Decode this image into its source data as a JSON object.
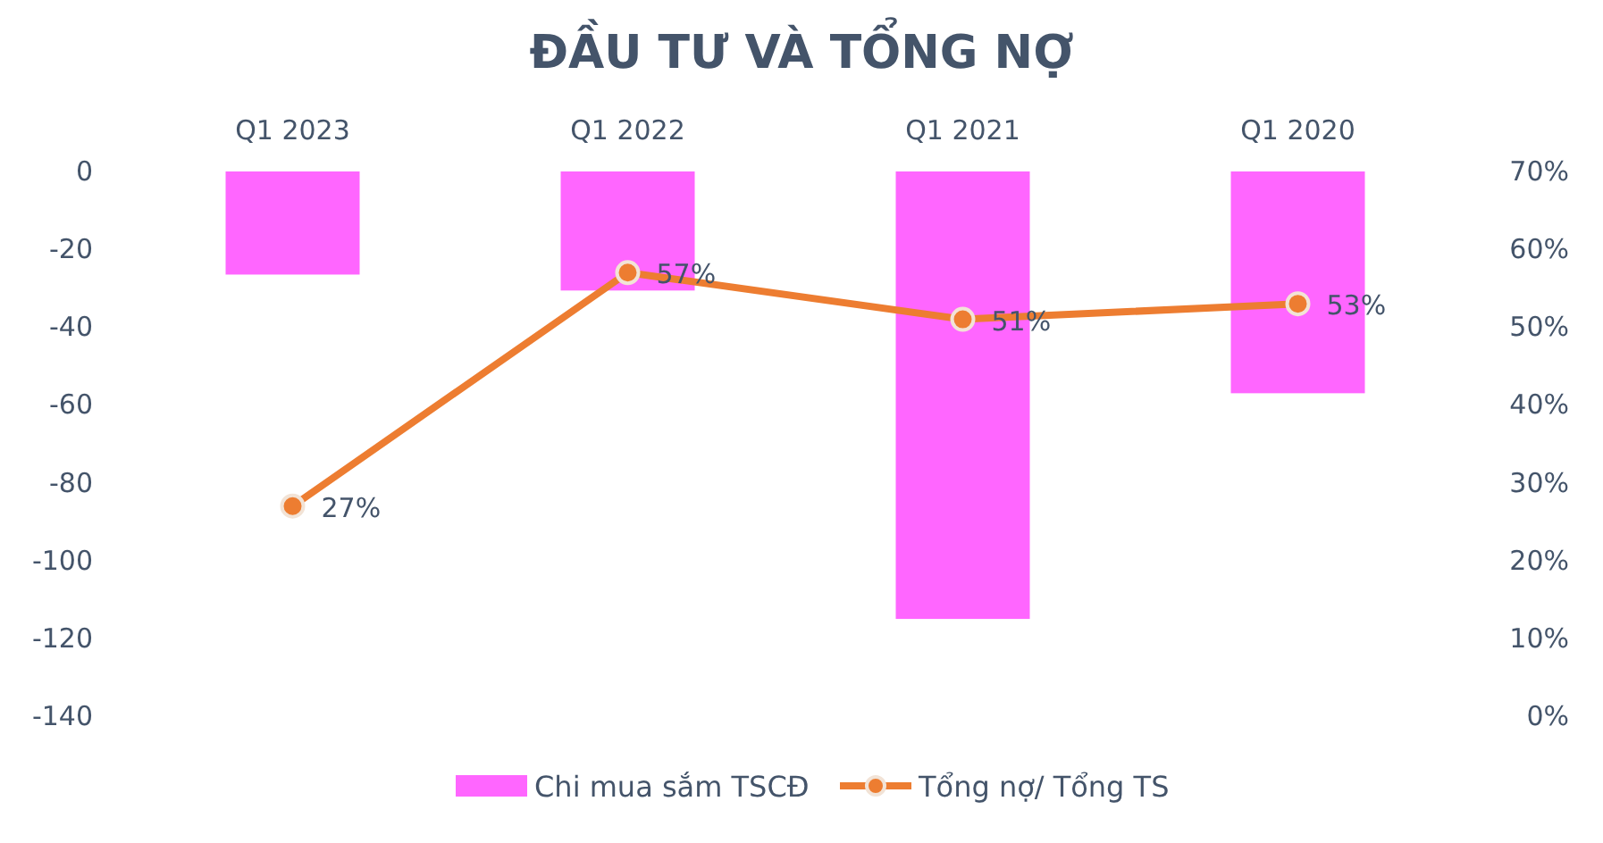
{
  "chart_data": {
    "type": "bar",
    "title": "ĐẦU TƯ VÀ TỔNG NỢ",
    "categories": [
      "Q1 2023",
      "Q1 2022",
      "Q1 2021",
      "Q1 2020"
    ],
    "series": [
      {
        "name": "Chi mua sắm TSCĐ",
        "color": "#ff66ff",
        "values": [
          -26.5,
          -30.6,
          -115,
          -57
        ]
      },
      {
        "name": "Tổng nợ/ Tổng TS",
        "type": "line",
        "axis": "y2",
        "color": "#ed7d31",
        "values": [
          27,
          57,
          51,
          53
        ],
        "value_labels": [
          "27%",
          "57%",
          "51%",
          "53%"
        ],
        "marker": "circle"
      }
    ],
    "ylim": [
      -140,
      0
    ],
    "yticks": [
      0,
      -20,
      -40,
      -60,
      -80,
      -100,
      -120,
      -140
    ],
    "y2lim": [
      0,
      70
    ],
    "y2ticks": [
      {
        "value": 0,
        "label": "0%"
      },
      {
        "value": 10,
        "label": "10%"
      },
      {
        "value": 20,
        "label": "20%"
      },
      {
        "value": 30,
        "label": "30%"
      },
      {
        "value": 40,
        "label": "40%"
      },
      {
        "value": 50,
        "label": "50%"
      },
      {
        "value": 60,
        "label": "60%"
      },
      {
        "value": 70,
        "label": "70%"
      }
    ],
    "grid": false,
    "legend": "bottom"
  }
}
